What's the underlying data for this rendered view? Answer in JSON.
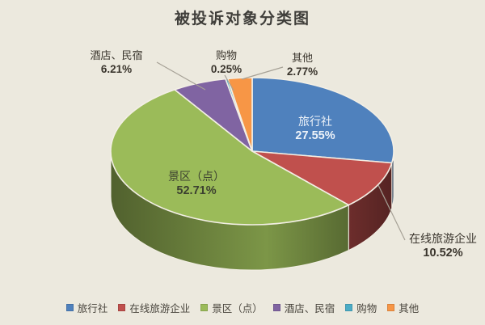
{
  "chart_data": {
    "type": "pie",
    "style": "3d",
    "title": "被投诉对象分类图",
    "legend_position": "bottom",
    "unit": "%",
    "slices": [
      {
        "label": "旅行社",
        "value": 27.55,
        "pct": "27.55%",
        "color": "#4f81bd"
      },
      {
        "label": "在线旅游企业",
        "value": 10.52,
        "pct": "10.52%",
        "color": "#c0504d"
      },
      {
        "label": "景区（点）",
        "value": 52.71,
        "pct": "52.71%",
        "color": "#9bbb59"
      },
      {
        "label": "酒店、民宿",
        "value": 6.21,
        "pct": "6.21%",
        "color": "#8064a2"
      },
      {
        "label": "购物",
        "value": 0.25,
        "pct": "0.25%",
        "color": "#4bacc6"
      },
      {
        "label": "其他",
        "value": 2.77,
        "pct": "2.77%",
        "color": "#f79646"
      }
    ],
    "background": "#ece9de"
  }
}
